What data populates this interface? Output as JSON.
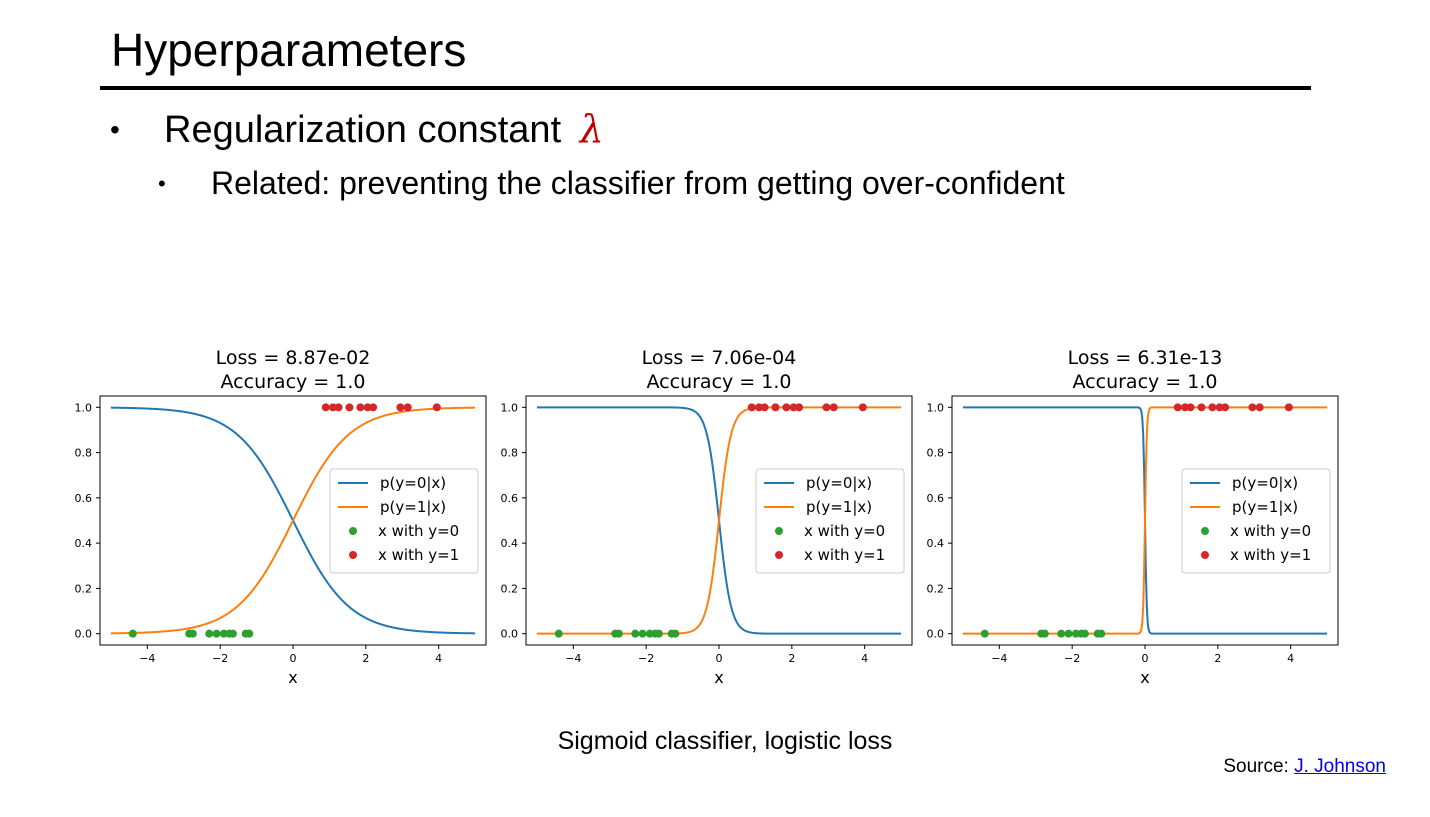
{
  "slide": {
    "title": "Hyperparameters",
    "bullet_symbol": "•",
    "bullet1": "Regularization constant ",
    "bullet1_symbol": "λ",
    "bullet2": "Related: preventing the classifier from getting over-confident",
    "caption": "Sigmoid classifier, logistic loss",
    "source_label": "Source: ",
    "source_link": "J. Johnson"
  },
  "colors": {
    "p0": "#1f77b4",
    "p1": "#ff7f0e",
    "class0": "#2ca02c",
    "class1": "#d62728",
    "lambda": "#c00000"
  },
  "chart_data": [
    {
      "type": "line",
      "title": [
        "Loss = 8.87e-02",
        "Accuracy = 1.0"
      ],
      "xlabel": "x",
      "ylabel": "",
      "xlim": [
        -5.3,
        5.3
      ],
      "ylim": [
        -0.05,
        1.05
      ],
      "xticks": [
        -4,
        -2,
        0,
        2,
        4
      ],
      "yticks": [
        0.0,
        0.2,
        0.4,
        0.6,
        0.8,
        1.0
      ],
      "xticklabels": [
        "−4",
        "−2",
        "0",
        "2",
        "4"
      ],
      "yticklabels": [
        "0.0",
        "0.2",
        "0.4",
        "0.6",
        "0.8",
        "1.0"
      ],
      "steepness": 1.3,
      "x_range": [
        -5,
        5
      ],
      "series": [
        {
          "name": "p(y=0|x)",
          "kind": "line",
          "color": "#1f77b4"
        },
        {
          "name": "p(y=1|x)",
          "kind": "line",
          "color": "#ff7f0e"
        },
        {
          "name": "x with y=0",
          "kind": "points",
          "color": "#2ca02c",
          "x": [
            -4.4,
            -2.85,
            -2.75,
            -2.3,
            -2.1,
            -1.9,
            -1.75,
            -1.65,
            -1.3,
            -1.2
          ],
          "y": [
            0,
            0,
            0,
            0,
            0,
            0,
            0,
            0,
            0,
            0
          ]
        },
        {
          "name": "x with y=1",
          "kind": "points",
          "color": "#d62728",
          "x": [
            0.9,
            1.1,
            1.25,
            1.55,
            1.85,
            2.05,
            2.2,
            2.95,
            3.15,
            3.95
          ],
          "y": [
            1,
            1,
            1,
            1,
            1,
            1,
            1,
            1,
            1,
            1
          ]
        }
      ],
      "legend": "center-right"
    },
    {
      "type": "line",
      "title": [
        "Loss = 7.06e-04",
        "Accuracy = 1.0"
      ],
      "xlabel": "x",
      "ylabel": "",
      "xlim": [
        -5.3,
        5.3
      ],
      "ylim": [
        -0.05,
        1.05
      ],
      "xticks": [
        -4,
        -2,
        0,
        2,
        4
      ],
      "yticks": [
        0.0,
        0.2,
        0.4,
        0.6,
        0.8,
        1.0
      ],
      "xticklabels": [
        "−4",
        "−2",
        "0",
        "2",
        "4"
      ],
      "yticklabels": [
        "0.0",
        "0.2",
        "0.4",
        "0.6",
        "0.8",
        "1.0"
      ],
      "steepness": 6,
      "x_range": [
        -5,
        5
      ],
      "series": [
        {
          "name": "p(y=0|x)",
          "kind": "line",
          "color": "#1f77b4"
        },
        {
          "name": "p(y=1|x)",
          "kind": "line",
          "color": "#ff7f0e"
        },
        {
          "name": "x with y=0",
          "kind": "points",
          "color": "#2ca02c",
          "x": [
            -4.4,
            -2.85,
            -2.75,
            -2.3,
            -2.1,
            -1.9,
            -1.75,
            -1.65,
            -1.3,
            -1.2
          ],
          "y": [
            0,
            0,
            0,
            0,
            0,
            0,
            0,
            0,
            0,
            0
          ]
        },
        {
          "name": "x with y=1",
          "kind": "points",
          "color": "#d62728",
          "x": [
            0.9,
            1.1,
            1.25,
            1.55,
            1.85,
            2.05,
            2.2,
            2.95,
            3.15,
            3.95
          ],
          "y": [
            1,
            1,
            1,
            1,
            1,
            1,
            1,
            1,
            1,
            1
          ]
        }
      ],
      "legend": "center-right"
    },
    {
      "type": "line",
      "title": [
        "Loss = 6.31e-13",
        "Accuracy = 1.0"
      ],
      "xlabel": "x",
      "ylabel": "",
      "xlim": [
        -5.3,
        5.3
      ],
      "ylim": [
        -0.05,
        1.05
      ],
      "xticks": [
        -4,
        -2,
        0,
        2,
        4
      ],
      "yticks": [
        0.0,
        0.2,
        0.4,
        0.6,
        0.8,
        1.0
      ],
      "xticklabels": [
        "−4",
        "−2",
        "0",
        "2",
        "4"
      ],
      "yticklabels": [
        "0.0",
        "0.2",
        "0.4",
        "0.6",
        "0.8",
        "1.0"
      ],
      "steepness": 40,
      "x_range": [
        -5,
        5
      ],
      "series": [
        {
          "name": "p(y=0|x)",
          "kind": "line",
          "color": "#1f77b4"
        },
        {
          "name": "p(y=1|x)",
          "kind": "line",
          "color": "#ff7f0e"
        },
        {
          "name": "x with y=0",
          "kind": "points",
          "color": "#2ca02c",
          "x": [
            -4.4,
            -2.85,
            -2.75,
            -2.3,
            -2.1,
            -1.9,
            -1.75,
            -1.65,
            -1.3,
            -1.2
          ],
          "y": [
            0,
            0,
            0,
            0,
            0,
            0,
            0,
            0,
            0,
            0
          ]
        },
        {
          "name": "x with y=1",
          "kind": "points",
          "color": "#d62728",
          "x": [
            0.9,
            1.1,
            1.25,
            1.55,
            1.85,
            2.05,
            2.2,
            2.95,
            3.15,
            3.95
          ],
          "y": [
            1,
            1,
            1,
            1,
            1,
            1,
            1,
            1,
            1,
            1
          ]
        }
      ],
      "legend": "center-right"
    }
  ]
}
